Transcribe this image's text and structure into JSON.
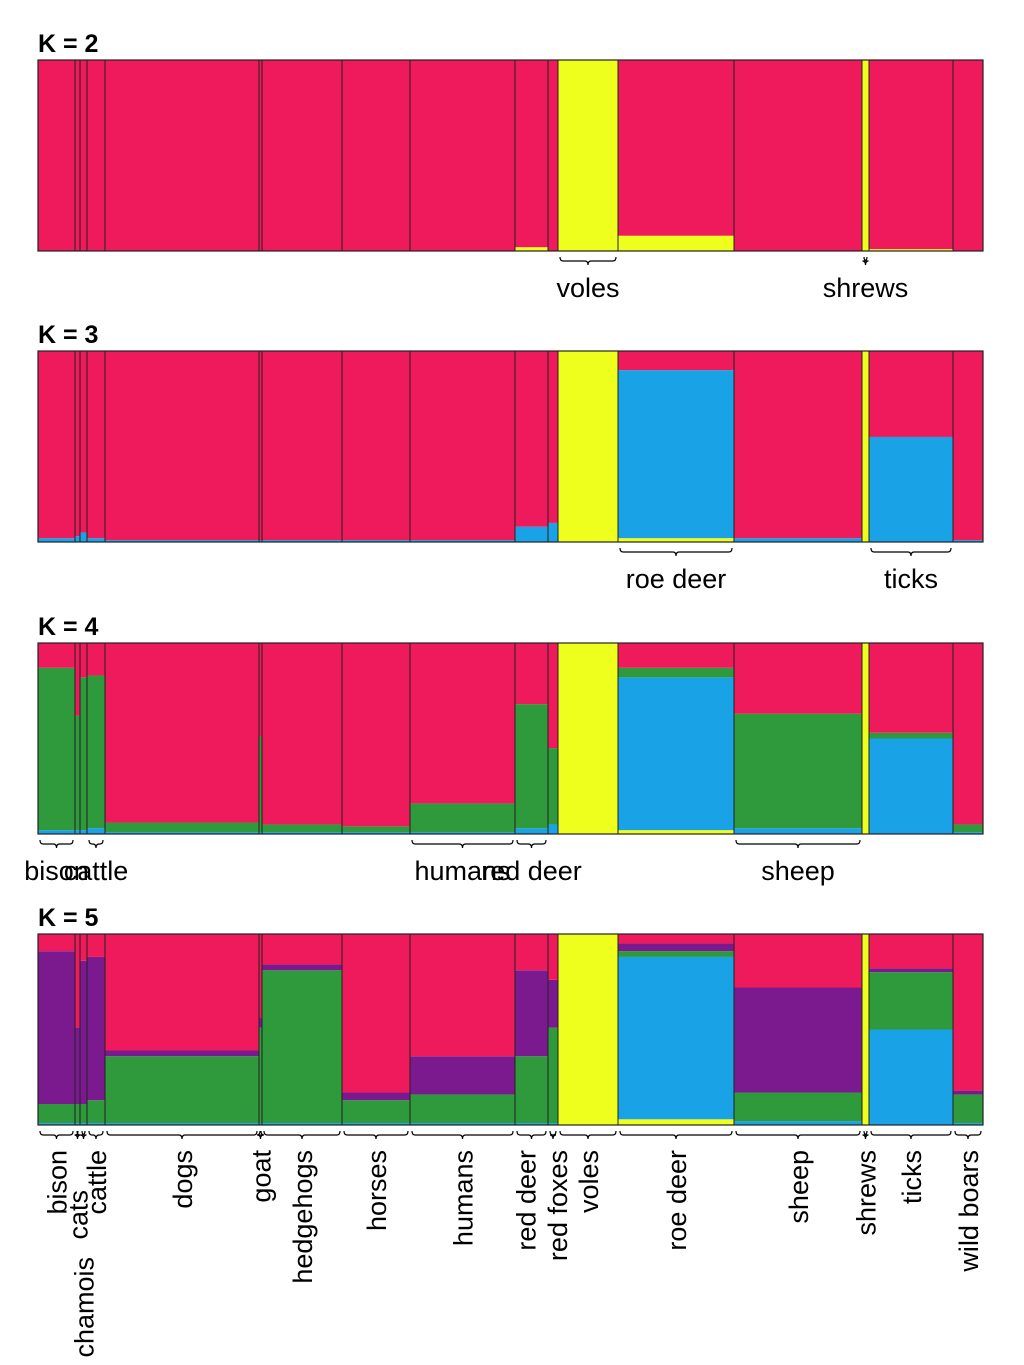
{
  "chart_data": [
    {
      "type": "bar",
      "stacked": true,
      "title": "K = 2",
      "ylim": [
        0,
        100
      ],
      "categories": [
        null,
        null,
        null,
        null,
        null,
        null,
        null,
        null,
        null,
        null,
        null,
        "voles",
        null,
        null,
        "shrews",
        null,
        null
      ],
      "series": [
        {
          "color": "#eeff1e",
          "values": [
            0,
            0,
            0,
            0,
            0,
            0,
            0,
            0,
            0,
            2,
            0,
            100,
            8,
            0,
            100,
            1,
            0
          ]
        },
        {
          "color": "#ee1a5b",
          "values": [
            100,
            100,
            100,
            100,
            100,
            100,
            100,
            100,
            100,
            98,
            100,
            0,
            92,
            100,
            0,
            99,
            100
          ]
        }
      ]
    },
    {
      "type": "bar",
      "stacked": true,
      "title": "K = 3",
      "ylim": [
        0,
        100
      ],
      "categories": [
        null,
        null,
        null,
        null,
        null,
        null,
        null,
        null,
        null,
        null,
        null,
        null,
        "roe deer",
        null,
        null,
        "ticks",
        null
      ],
      "series": [
        {
          "color": "#eeff1e",
          "values": [
            0,
            0,
            0,
            0,
            0,
            0,
            0,
            0,
            0,
            0,
            0,
            100,
            2,
            0,
            100,
            0,
            0
          ]
        },
        {
          "color": "#1aa2e6",
          "values": [
            2,
            3,
            5,
            2,
            1,
            1,
            1,
            1,
            1,
            8,
            10,
            0,
            88,
            2,
            0,
            55,
            1
          ]
        },
        {
          "color": "#ee1a5b",
          "values": [
            98,
            97,
            95,
            98,
            99,
            99,
            99,
            99,
            99,
            92,
            90,
            0,
            10,
            98,
            0,
            45,
            99
          ]
        }
      ]
    },
    {
      "type": "bar",
      "stacked": true,
      "title": "K = 4",
      "ylim": [
        0,
        100
      ],
      "categories": [
        "bison",
        null,
        null,
        "cattle",
        null,
        null,
        null,
        null,
        "humans",
        "red deer",
        null,
        null,
        null,
        "sheep",
        null,
        null,
        null
      ],
      "series": [
        {
          "color": "#eeff1e",
          "values": [
            0,
            0,
            0,
            0,
            0,
            0,
            0,
            0,
            0,
            0,
            0,
            100,
            2,
            0,
            100,
            0,
            0
          ]
        },
        {
          "color": "#1aa2e6",
          "values": [
            2,
            2,
            2,
            3,
            1,
            1,
            1,
            1,
            1,
            3,
            5,
            0,
            80,
            3,
            0,
            50,
            1
          ]
        },
        {
          "color": "#2e9a3c",
          "values": [
            85,
            60,
            80,
            80,
            5,
            50,
            4,
            3,
            15,
            65,
            40,
            0,
            5,
            60,
            0,
            3,
            4
          ]
        },
        {
          "color": "#ee1a5b",
          "values": [
            13,
            38,
            18,
            17,
            94,
            49,
            95,
            96,
            84,
            32,
            55,
            0,
            13,
            37,
            0,
            47,
            95
          ]
        }
      ]
    },
    {
      "type": "bar",
      "stacked": true,
      "title": "K = 5",
      "ylim": [
        0,
        100
      ],
      "categories": [
        "bison",
        "cats",
        "chamois",
        "cattle",
        "dogs",
        "goat",
        "hedgehogs",
        "horses",
        "humans",
        "red deer",
        "red foxes",
        "voles",
        "roe deer",
        "sheep",
        "shrews",
        "ticks",
        "wild boars"
      ],
      "series": [
        {
          "color": "#eeff1e",
          "values": [
            0,
            0,
            0,
            0,
            0,
            0,
            0,
            0,
            0,
            0,
            0,
            100,
            3,
            0,
            100,
            0,
            0
          ]
        },
        {
          "color": "#1aa2e6",
          "values": [
            1,
            1,
            1,
            1,
            1,
            1,
            1,
            1,
            1,
            1,
            1,
            0,
            85,
            2,
            0,
            50,
            1
          ]
        },
        {
          "color": "#2e9a3c",
          "values": [
            10,
            10,
            10,
            12,
            35,
            50,
            80,
            12,
            15,
            35,
            50,
            0,
            3,
            15,
            0,
            30,
            15
          ]
        },
        {
          "color": "#7a1a8e",
          "values": [
            80,
            40,
            75,
            75,
            3,
            5,
            3,
            4,
            20,
            45,
            25,
            0,
            4,
            55,
            0,
            2,
            2
          ]
        },
        {
          "color": "#ee1a5b",
          "values": [
            9,
            49,
            14,
            12,
            61,
            44,
            16,
            83,
            64,
            19,
            24,
            0,
            5,
            28,
            0,
            18,
            82
          ]
        }
      ]
    }
  ]
}
